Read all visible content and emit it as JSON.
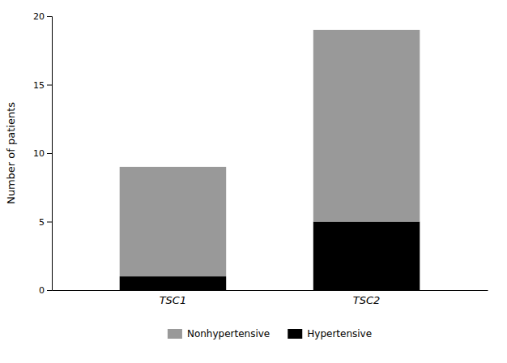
{
  "chart_data": {
    "type": "bar",
    "stacked": true,
    "categories": [
      "TSC1",
      "TSC2"
    ],
    "series": [
      {
        "name": "Hypertensive",
        "color": "#000000",
        "values": [
          1,
          5
        ]
      },
      {
        "name": "Nonhypertensive",
        "color": "#999999",
        "values": [
          8,
          14
        ]
      }
    ],
    "ylabel": "Number of patients",
    "ylim": [
      0,
      20
    ],
    "yticks": [
      0,
      5,
      10,
      15,
      20
    ],
    "grid": false,
    "legend": "bottom"
  }
}
